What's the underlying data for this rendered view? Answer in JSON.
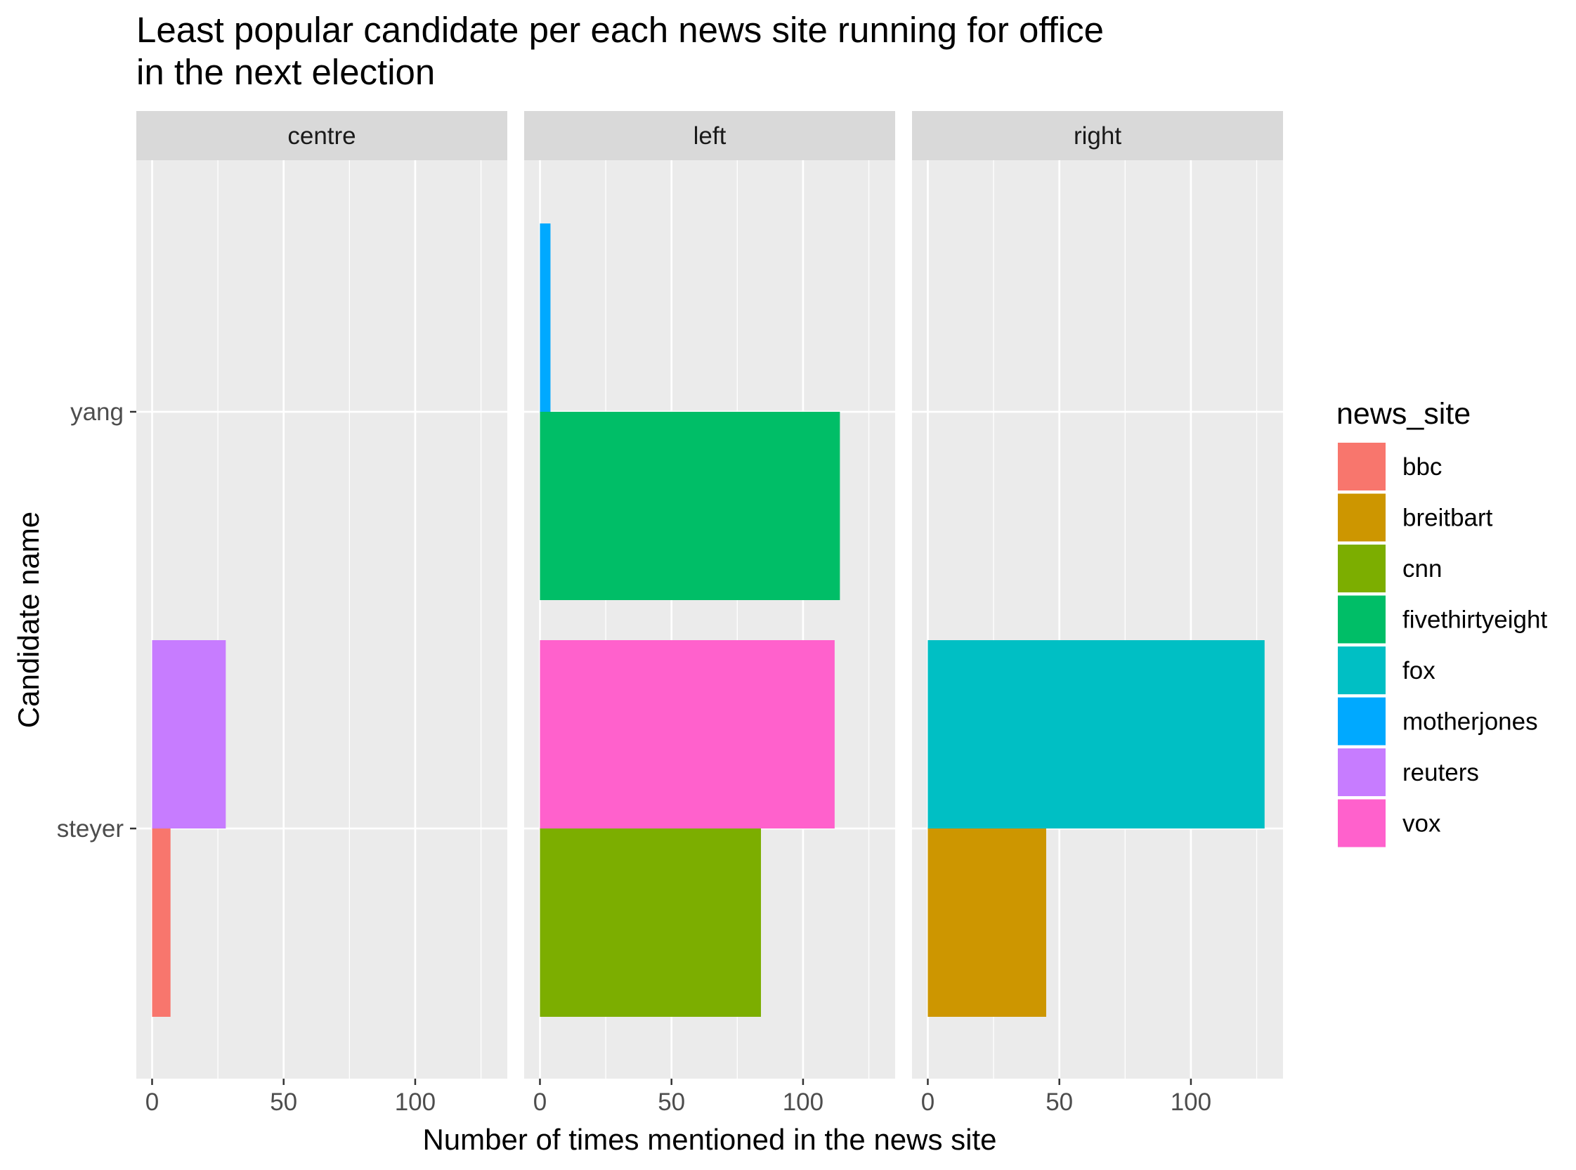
{
  "chart_data": {
    "type": "bar",
    "orientation": "horizontal",
    "layout": "facets",
    "title": "Least popular candidate per each news site running for office\nin the next election",
    "xlabel": "Number of times mentioned in the news site",
    "ylabel": "Candidate name",
    "categories": [
      "steyer",
      "yang"
    ],
    "xlim": [
      -6,
      135
    ],
    "x_ticks": [
      0,
      50,
      100
    ],
    "grid": true,
    "legend": {
      "title": "news_site",
      "position": "right",
      "entries": [
        {
          "name": "bbc",
          "color": "#F8766D"
        },
        {
          "name": "breitbart",
          "color": "#CD9600"
        },
        {
          "name": "cnn",
          "color": "#7CAE00"
        },
        {
          "name": "fivethirtyeight",
          "color": "#00BE67"
        },
        {
          "name": "fox",
          "color": "#00BFC4"
        },
        {
          "name": "motherjones",
          "color": "#00A9FF"
        },
        {
          "name": "reuters",
          "color": "#C77CFF"
        },
        {
          "name": "vox",
          "color": "#FF61CC"
        }
      ]
    },
    "facets": [
      {
        "label": "centre",
        "bars": [
          {
            "candidate": "steyer",
            "news_site": "bbc",
            "value": 7
          },
          {
            "candidate": "steyer",
            "news_site": "reuters",
            "value": 28
          }
        ]
      },
      {
        "label": "left",
        "bars": [
          {
            "candidate": "steyer",
            "news_site": "cnn",
            "value": 84
          },
          {
            "candidate": "steyer",
            "news_site": "vox",
            "value": 112
          },
          {
            "candidate": "yang",
            "news_site": "fivethirtyeight",
            "value": 114
          },
          {
            "candidate": "yang",
            "news_site": "motherjones",
            "value": 4
          }
        ]
      },
      {
        "label": "right",
        "bars": [
          {
            "candidate": "steyer",
            "news_site": "breitbart",
            "value": 45
          },
          {
            "candidate": "steyer",
            "news_site": "fox",
            "value": 128
          }
        ]
      }
    ]
  }
}
